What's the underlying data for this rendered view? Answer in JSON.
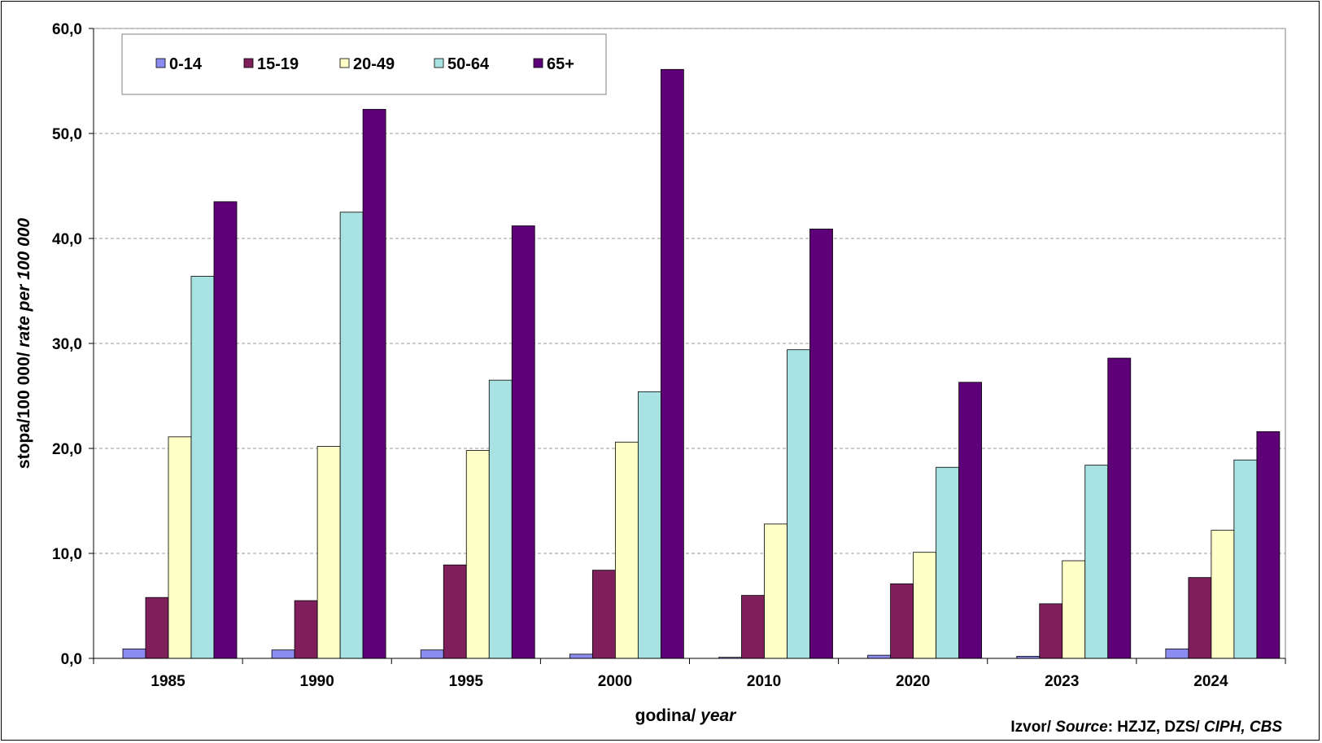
{
  "chart_data": {
    "type": "bar",
    "categories": [
      "1985",
      "1990",
      "1995",
      "2000",
      "2010",
      "2020",
      "2023",
      "2024"
    ],
    "series": [
      {
        "name": "0-14",
        "color": "#8C8CF0",
        "values": [
          0.9,
          0.8,
          0.8,
          0.4,
          0.1,
          0.3,
          0.2,
          0.9
        ]
      },
      {
        "name": "15-19",
        "color": "#7F1F5C",
        "values": [
          5.8,
          5.5,
          8.9,
          8.4,
          6.0,
          7.1,
          5.2,
          7.7
        ]
      },
      {
        "name": "20-49",
        "color": "#FFFFC8",
        "values": [
          21.1,
          20.2,
          19.8,
          20.6,
          12.8,
          10.1,
          9.3,
          12.2
        ]
      },
      {
        "name": "50-64",
        "color": "#A8E2E2",
        "values": [
          36.4,
          42.5,
          26.5,
          25.4,
          29.4,
          18.2,
          18.4,
          18.9
        ]
      },
      {
        "name": "65+",
        "color": "#5E0077",
        "values": [
          43.5,
          52.3,
          41.2,
          56.1,
          40.9,
          26.3,
          28.6,
          21.6
        ]
      }
    ],
    "ylim": [
      0,
      60
    ],
    "yticks": [
      "0,0",
      "10,0",
      "20,0",
      "30,0",
      "40,0",
      "50,0",
      "60,0"
    ],
    "ylabel": {
      "plain": "stopa/100 000/ ",
      "italic": "rate per 100 000"
    },
    "xlabel": {
      "plain": "godina/ ",
      "italic": "year"
    },
    "grid": "dashed horizontal",
    "legend_position": "top-left"
  },
  "source": {
    "part1": "Izvor/ ",
    "part2": "Source",
    "part3": ": HZJZ, DZS/ ",
    "part4": "CIPH, CBS"
  }
}
